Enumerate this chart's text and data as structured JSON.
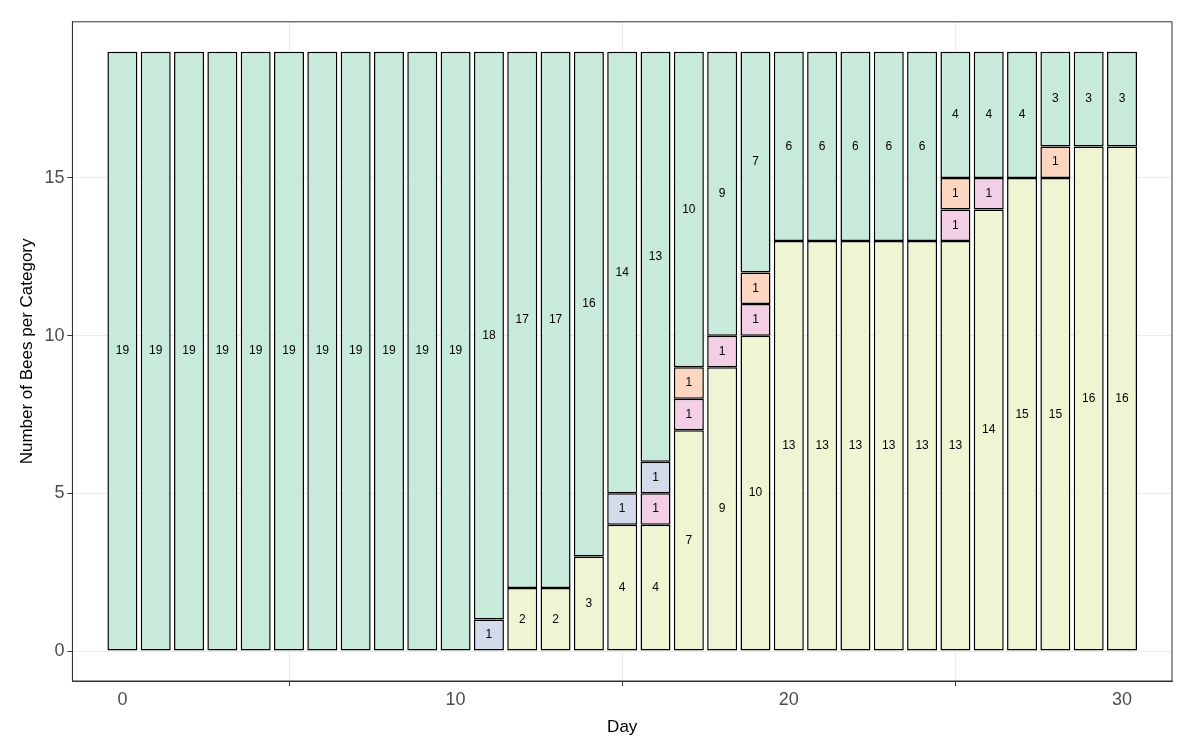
{
  "chart_data": {
    "type": "bar",
    "stacked": true,
    "xlabel": "Day",
    "ylabel": "Number of Bees per Category",
    "x": [
      0,
      1,
      2,
      3,
      4,
      5,
      6,
      7,
      8,
      9,
      10,
      11,
      12,
      13,
      14,
      15,
      16,
      17,
      18,
      19,
      20,
      21,
      22,
      23,
      24,
      25,
      26,
      27,
      28,
      29,
      30
    ],
    "series": [
      {
        "color": "#eff5d3",
        "values": [
          null,
          null,
          null,
          null,
          null,
          null,
          null,
          null,
          null,
          null,
          null,
          null,
          2,
          2,
          3,
          4,
          4,
          7,
          9,
          10,
          13,
          13,
          13,
          13,
          13,
          13,
          14,
          15,
          15,
          16,
          16
        ]
      },
      {
        "color": "#f3cfe5",
        "values": [
          null,
          null,
          null,
          null,
          null,
          null,
          null,
          null,
          null,
          null,
          null,
          null,
          null,
          null,
          null,
          null,
          1,
          1,
          1,
          1,
          null,
          null,
          null,
          null,
          null,
          1,
          1,
          null,
          null,
          null,
          null
        ]
      },
      {
        "color": "#d3dbeb",
        "values": [
          null,
          null,
          null,
          null,
          null,
          null,
          null,
          null,
          null,
          null,
          null,
          1,
          null,
          null,
          null,
          1,
          1,
          null,
          null,
          null,
          null,
          null,
          null,
          null,
          null,
          null,
          null,
          null,
          null,
          null,
          null
        ]
      },
      {
        "color": "#fcd6c0",
        "values": [
          null,
          null,
          null,
          null,
          null,
          null,
          null,
          null,
          null,
          null,
          null,
          null,
          null,
          null,
          null,
          null,
          null,
          1,
          null,
          1,
          null,
          null,
          null,
          null,
          null,
          1,
          null,
          null,
          1,
          null,
          null
        ]
      },
      {
        "color": "#c7eadb",
        "values": [
          19,
          19,
          19,
          19,
          19,
          19,
          19,
          19,
          19,
          19,
          19,
          18,
          17,
          17,
          16,
          14,
          13,
          10,
          9,
          7,
          6,
          6,
          6,
          6,
          6,
          4,
          4,
          4,
          3,
          3,
          3
        ]
      }
    ],
    "xlim": [
      -1.5,
      31.5
    ],
    "xticks": [
      0,
      10,
      20,
      30
    ],
    "ylim": [
      -0.95,
      19.95
    ],
    "yticks": [
      0,
      5,
      10,
      15
    ],
    "grid": true,
    "data_labels": true
  }
}
